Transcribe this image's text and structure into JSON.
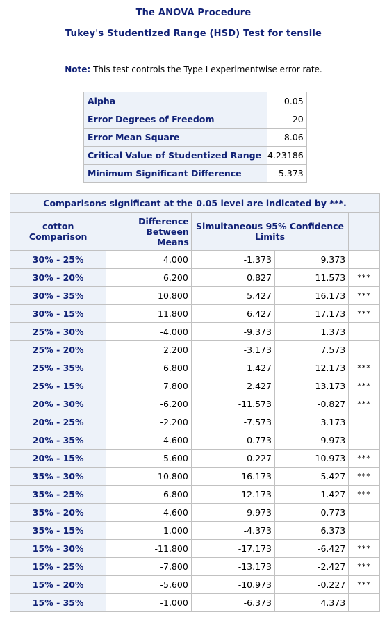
{
  "header": {
    "title": "The ANOVA Procedure",
    "subtitle": "Tukey's Studentized Range (HSD) Test for tensile"
  },
  "note": {
    "label": "Note:",
    "text": "This test controls the Type I experimentwise error rate."
  },
  "stats": [
    {
      "label": "Alpha",
      "value": "0.05"
    },
    {
      "label": "Error Degrees of Freedom",
      "value": "20"
    },
    {
      "label": "Error Mean Square",
      "value": "8.06"
    },
    {
      "label": "Critical Value of Studentized Range",
      "value": "4.23186"
    },
    {
      "label": "Minimum Significant Difference",
      "value": "5.373"
    }
  ],
  "comparisons": {
    "caption": "Comparisons significant at the 0.05 level are indicated by ***.",
    "headers": {
      "comparison_line1": "cotton",
      "comparison_line2": "Comparison",
      "diff_line1": "Difference",
      "diff_line2": "Between",
      "diff_line3": "Means",
      "ci_line1": "Simultaneous 95% Confidence",
      "ci_line2": "Limits"
    },
    "rows": [
      {
        "comparison": "30% - 25%",
        "diff": "4.000",
        "lower": "-1.373",
        "upper": "9.373",
        "sig": ""
      },
      {
        "comparison": "30% - 20%",
        "diff": "6.200",
        "lower": "0.827",
        "upper": "11.573",
        "sig": "***"
      },
      {
        "comparison": "30% - 35%",
        "diff": "10.800",
        "lower": "5.427",
        "upper": "16.173",
        "sig": "***"
      },
      {
        "comparison": "30% - 15%",
        "diff": "11.800",
        "lower": "6.427",
        "upper": "17.173",
        "sig": "***"
      },
      {
        "comparison": "25% - 30%",
        "diff": "-4.000",
        "lower": "-9.373",
        "upper": "1.373",
        "sig": ""
      },
      {
        "comparison": "25% - 20%",
        "diff": "2.200",
        "lower": "-3.173",
        "upper": "7.573",
        "sig": ""
      },
      {
        "comparison": "25% - 35%",
        "diff": "6.800",
        "lower": "1.427",
        "upper": "12.173",
        "sig": "***"
      },
      {
        "comparison": "25% - 15%",
        "diff": "7.800",
        "lower": "2.427",
        "upper": "13.173",
        "sig": "***"
      },
      {
        "comparison": "20% - 30%",
        "diff": "-6.200",
        "lower": "-11.573",
        "upper": "-0.827",
        "sig": "***"
      },
      {
        "comparison": "20% - 25%",
        "diff": "-2.200",
        "lower": "-7.573",
        "upper": "3.173",
        "sig": ""
      },
      {
        "comparison": "20% - 35%",
        "diff": "4.600",
        "lower": "-0.773",
        "upper": "9.973",
        "sig": ""
      },
      {
        "comparison": "20% - 15%",
        "diff": "5.600",
        "lower": "0.227",
        "upper": "10.973",
        "sig": "***"
      },
      {
        "comparison": "35% - 30%",
        "diff": "-10.800",
        "lower": "-16.173",
        "upper": "-5.427",
        "sig": "***"
      },
      {
        "comparison": "35% - 25%",
        "diff": "-6.800",
        "lower": "-12.173",
        "upper": "-1.427",
        "sig": "***"
      },
      {
        "comparison": "35% - 20%",
        "diff": "-4.600",
        "lower": "-9.973",
        "upper": "0.773",
        "sig": ""
      },
      {
        "comparison": "35% - 15%",
        "diff": "1.000",
        "lower": "-4.373",
        "upper": "6.373",
        "sig": ""
      },
      {
        "comparison": "15% - 30%",
        "diff": "-11.800",
        "lower": "-17.173",
        "upper": "-6.427",
        "sig": "***"
      },
      {
        "comparison": "15% - 25%",
        "diff": "-7.800",
        "lower": "-13.173",
        "upper": "-2.427",
        "sig": "***"
      },
      {
        "comparison": "15% - 20%",
        "diff": "-5.600",
        "lower": "-10.973",
        "upper": "-0.227",
        "sig": "***"
      },
      {
        "comparison": "15% - 35%",
        "diff": "-1.000",
        "lower": "-6.373",
        "upper": "4.373",
        "sig": ""
      }
    ]
  }
}
